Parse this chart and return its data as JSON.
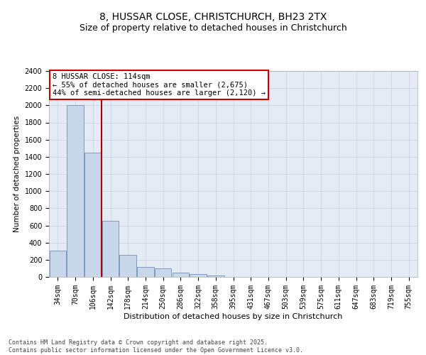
{
  "title_line1": "8, HUSSAR CLOSE, CHRISTCHURCH, BH23 2TX",
  "title_line2": "Size of property relative to detached houses in Christchurch",
  "xlabel": "Distribution of detached houses by size in Christchurch",
  "ylabel": "Number of detached properties",
  "categories": [
    "34sqm",
    "70sqm",
    "106sqm",
    "142sqm",
    "178sqm",
    "214sqm",
    "250sqm",
    "286sqm",
    "322sqm",
    "358sqm",
    "395sqm",
    "431sqm",
    "467sqm",
    "503sqm",
    "539sqm",
    "575sqm",
    "611sqm",
    "647sqm",
    "683sqm",
    "719sqm",
    "755sqm"
  ],
  "values": [
    305,
    2000,
    1450,
    650,
    260,
    120,
    100,
    50,
    30,
    15,
    0,
    0,
    0,
    0,
    0,
    0,
    0,
    0,
    0,
    0,
    0
  ],
  "bar_color": "#c8d8ea",
  "bar_edge_color": "#7090b8",
  "vline_color": "#aa0000",
  "vline_x_index": 2,
  "annotation_text": "8 HUSSAR CLOSE: 114sqm\n← 55% of detached houses are smaller (2,675)\n44% of semi-detached houses are larger (2,120) →",
  "annotation_box_edgecolor": "#cc0000",
  "ylim_max": 2400,
  "ytick_step": 200,
  "grid_color": "#c8d0dc",
  "plot_bg_color": "#e4ebf4",
  "fig_bg_color": "#ffffff",
  "footnote": "Contains HM Land Registry data © Crown copyright and database right 2025.\nContains public sector information licensed under the Open Government Licence v3.0.",
  "title_fontsize": 10,
  "subtitle_fontsize": 9,
  "xlabel_fontsize": 8,
  "ylabel_fontsize": 7.5,
  "tick_fontsize": 7,
  "annotation_fontsize": 7.5,
  "footnote_fontsize": 6
}
